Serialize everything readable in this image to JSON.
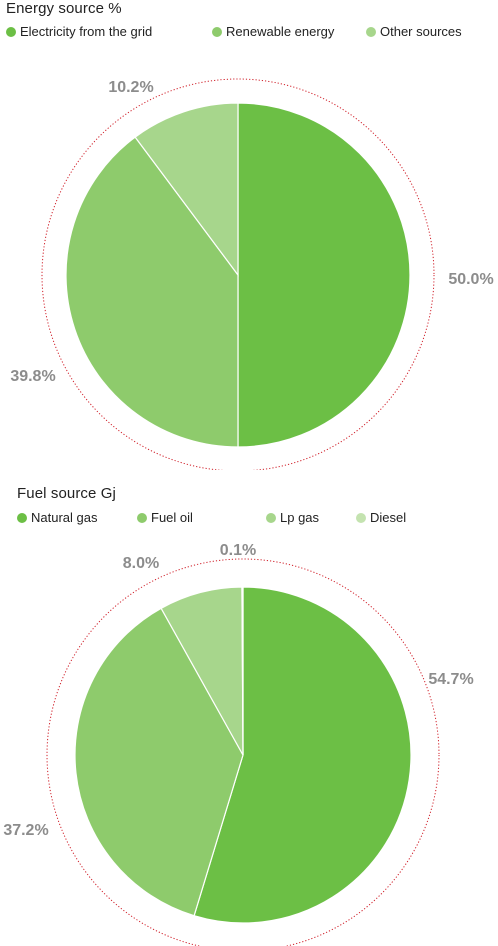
{
  "chart_data": [
    {
      "type": "pie",
      "title": "Energy source %",
      "categories": [
        "Electricity from the grid",
        "Renewable energy",
        "Other sources"
      ],
      "values": [
        50.0,
        39.8,
        10.2
      ],
      "labels": [
        "50.0%",
        "39.8%",
        "10.2%"
      ],
      "colors": [
        "#6cbf45",
        "#8ecb6c",
        "#a7d68c"
      ],
      "legend_position": "top"
    },
    {
      "type": "pie",
      "title": "Fuel source Gj",
      "categories": [
        "Natural gas",
        "Fuel oil",
        "Lp gas",
        "Diesel"
      ],
      "values": [
        54.7,
        37.2,
        8.0,
        0.1
      ],
      "labels": [
        "54.7%",
        "37.2%",
        "8.0%",
        "0.1%"
      ],
      "colors": [
        "#6cbf45",
        "#8ecb6c",
        "#a7d68c",
        "#c4e3b0"
      ],
      "legend_position": "top"
    }
  ]
}
